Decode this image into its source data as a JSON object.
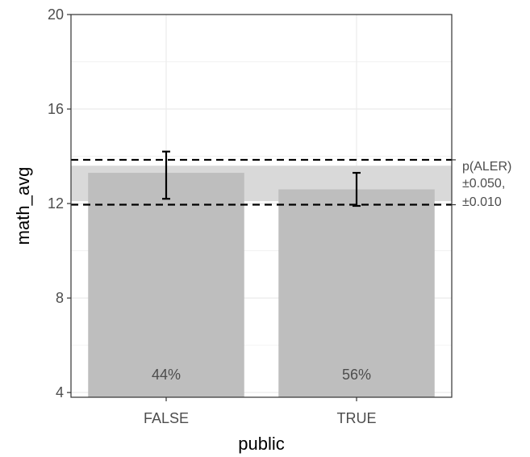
{
  "chart_data": {
    "type": "bar",
    "categories": [
      "FALSE",
      "TRUE"
    ],
    "values": [
      13.3,
      12.6
    ],
    "error_low": [
      12.2,
      11.9
    ],
    "error_high": [
      14.2,
      13.3
    ],
    "bar_labels": [
      "44%",
      "56%"
    ],
    "xlabel": "public",
    "ylabel": "math_avg",
    "ylim": [
      3.8,
      20
    ],
    "yticks": [
      4,
      8,
      12,
      16,
      20
    ],
    "y_tick_labels": [
      "4",
      "8",
      "12",
      "16",
      "20"
    ],
    "grid": true,
    "reference_band": {
      "low": 12.1,
      "high": 13.6
    },
    "reference_lines": [
      13.85,
      11.95
    ],
    "annotation_lines": [
      "p(ALER)",
      "±0.050,",
      "±0.010"
    ],
    "colors": {
      "bar": "#bebebe",
      "band": "#d9d9d9",
      "grid": "#ebebeb",
      "panel_border": "#333333",
      "error_bar": "#000000",
      "reference_line": "#000000"
    }
  }
}
